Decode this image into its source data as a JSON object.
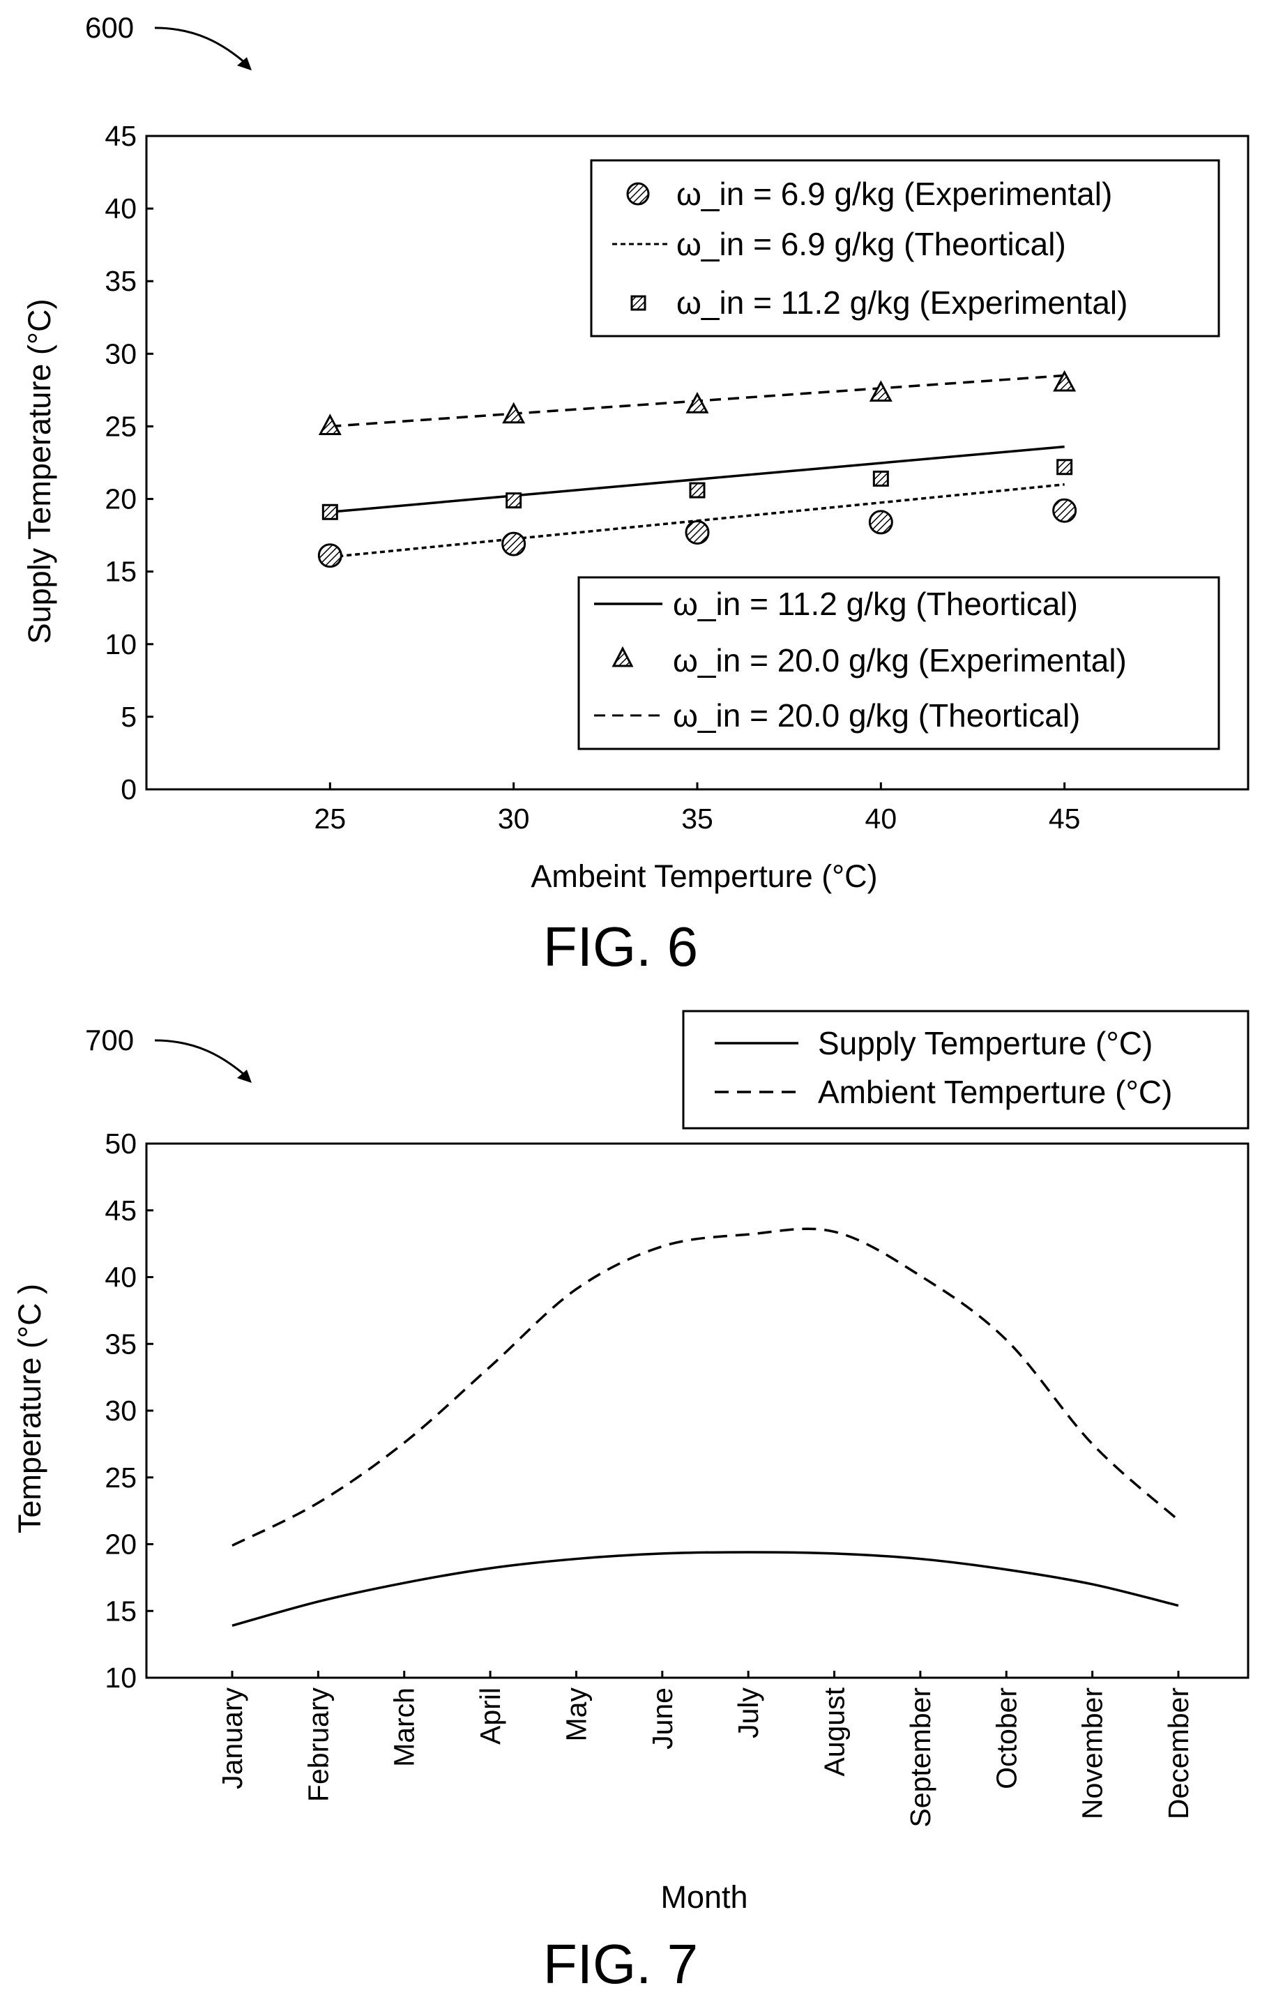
{
  "chart_data": [
    {
      "figure_label": "FIG. 6",
      "reference_number": "600",
      "type": "scatter",
      "xlabel": "Ambeint Temperture (°C)",
      "ylabel": "Supply Temperature (°C)",
      "xlim": [
        20,
        50
      ],
      "ylim": [
        0,
        45
      ],
      "xticks": [
        25,
        30,
        35,
        40,
        45
      ],
      "yticks": [
        0,
        5,
        10,
        15,
        20,
        25,
        30,
        35,
        40,
        45
      ],
      "grid": false,
      "legends": [
        {
          "placement": "top-right",
          "entries": [
            "ω_in = 6.9 g/kg (Experimental)",
            "ω_in = 6.9 g/kg (Theortical)",
            "ω_in = 11.2 g/kg (Experimental)"
          ]
        },
        {
          "placement": "bottom-right",
          "entries": [
            "ω_in = 11.2 g/kg (Theortical)",
            "ω_in = 20.0 g/kg (Experimental)",
            "ω_in = 20.0 g/kg (Theortical)"
          ]
        }
      ],
      "series": [
        {
          "name": "ω_in = 6.9 g/kg (Experimental)",
          "kind": "markers",
          "marker": "circle",
          "x": [
            25,
            30,
            35,
            40,
            45
          ],
          "y": [
            16.1,
            16.9,
            17.7,
            18.4,
            19.2
          ]
        },
        {
          "name": "ω_in = 6.9 g/kg (Theortical)",
          "kind": "line",
          "dash": "short-dash",
          "x": [
            25,
            45
          ],
          "y": [
            16.0,
            21.0
          ]
        },
        {
          "name": "ω_in = 11.2 g/kg (Experimental)",
          "kind": "markers",
          "marker": "square",
          "x": [
            25,
            30,
            35,
            40,
            45
          ],
          "y": [
            19.1,
            19.9,
            20.6,
            21.4,
            22.2
          ]
        },
        {
          "name": "ω_in = 11.2 g/kg (Theortical)",
          "kind": "line",
          "dash": "solid",
          "x": [
            25,
            45
          ],
          "y": [
            19.1,
            23.6
          ]
        },
        {
          "name": "ω_in = 20.0 g/kg (Experimental)",
          "kind": "markers",
          "marker": "triangle",
          "x": [
            25,
            30,
            35,
            40,
            45
          ],
          "y": [
            25.0,
            25.8,
            26.5,
            27.3,
            28.0
          ]
        },
        {
          "name": "ω_in = 20.0 g/kg (Theortical)",
          "kind": "line",
          "dash": "long-dash",
          "x": [
            25,
            45
          ],
          "y": [
            25.0,
            28.5
          ]
        }
      ]
    },
    {
      "figure_label": "FIG. 7",
      "reference_number": "700",
      "type": "line",
      "xlabel": "Month",
      "ylabel": "Temperature (°C )",
      "ylim": [
        10,
        50
      ],
      "yticks": [
        10,
        15,
        20,
        25,
        30,
        35,
        40,
        45,
        50
      ],
      "grid": false,
      "legend": {
        "placement": "top-right-outside",
        "entries": [
          "Supply Temperture (°C)",
          "Ambient Temperture (°C)"
        ]
      },
      "categories": [
        "January",
        "February",
        "March",
        "April",
        "May",
        "June",
        "July",
        "August",
        "September",
        "October",
        "November",
        "December"
      ],
      "series": [
        {
          "name": "Supply Temperture (°C)",
          "dash": "solid",
          "values": [
            13.9,
            15.7,
            17.1,
            18.2,
            18.9,
            19.3,
            19.4,
            19.3,
            18.9,
            18.1,
            17.0,
            15.4
          ]
        },
        {
          "name": "Ambient Temperture (°C)",
          "dash": "dashed",
          "values": [
            19.9,
            23.1,
            27.6,
            33.3,
            39.1,
            42.3,
            43.2,
            43.4,
            40.1,
            35.3,
            27.5,
            21.8
          ]
        }
      ]
    }
  ]
}
